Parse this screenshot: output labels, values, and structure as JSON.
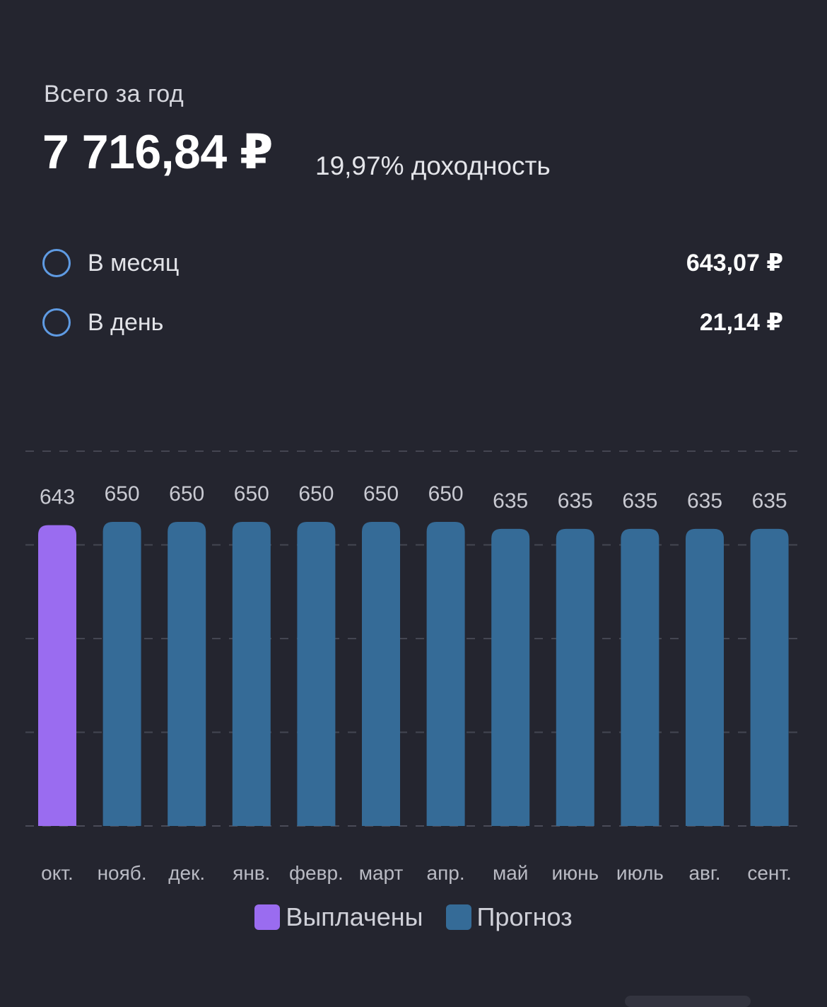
{
  "summary": {
    "label": "Всего за год",
    "total": "7 716,84 ₽",
    "yield": "19,97% доходность"
  },
  "stats": [
    {
      "label": "В месяц",
      "value": "643,07 ₽"
    },
    {
      "label": "В день",
      "value": "21,14 ₽"
    }
  ],
  "colors": {
    "paid": "#9a6cf0",
    "forecast": "#356b97",
    "ring": "#5f9be3",
    "background": "#24252f"
  },
  "chart_data": {
    "type": "bar",
    "categories": [
      "окт.",
      "нояб.",
      "дек.",
      "янв.",
      "февр.",
      "март",
      "апр.",
      "май",
      "июнь",
      "июль",
      "авг.",
      "сент."
    ],
    "series": [
      {
        "name": "Выплачены",
        "values": [
          643,
          null,
          null,
          null,
          null,
          null,
          null,
          null,
          null,
          null,
          null,
          null
        ]
      },
      {
        "name": "Прогноз",
        "values": [
          null,
          650,
          650,
          650,
          650,
          650,
          650,
          635,
          635,
          635,
          635,
          635
        ]
      }
    ],
    "data_labels": [
      "643",
      "650",
      "650",
      "650",
      "650",
      "650",
      "650",
      "635",
      "635",
      "635",
      "635",
      "635"
    ],
    "ylim": [
      0,
      650
    ],
    "grid": true,
    "legend_position": "bottom-center"
  },
  "legend": {
    "paid_label": "Выплачены",
    "forecast_label": "Прогноз"
  }
}
